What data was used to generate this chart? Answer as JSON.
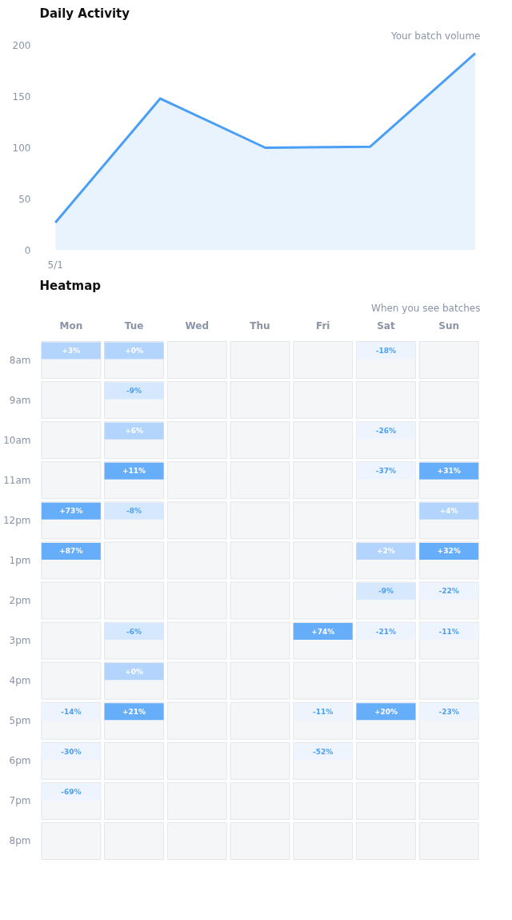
{
  "chart_data": [
    {
      "type": "area",
      "title": "Daily Activity",
      "subtitle": "Your batch volume",
      "categories": [
        "5/1",
        null,
        null,
        null,
        null
      ],
      "values": [
        27,
        148,
        100,
        101,
        192
      ],
      "color": "#4a9ff5",
      "ylim": [
        0,
        200
      ],
      "yticks": [
        0,
        50,
        100,
        150,
        200
      ],
      "grid": false
    },
    {
      "type": "heatmap",
      "title": "Heatmap",
      "subtitle": "When you see batches",
      "categories": [
        "Mon",
        "Tue",
        "Wed",
        "Thu",
        "Fri",
        "Sat",
        "Sun"
      ],
      "y_categories": [
        "8am",
        "9am",
        "10am",
        "11am",
        "12pm",
        "1pm",
        "2pm",
        "3pm",
        "4pm",
        "5pm",
        "6pm",
        "7pm",
        "8pm"
      ],
      "cells": [
        [
          3,
          0,
          null,
          null,
          null,
          -18,
          null
        ],
        [
          null,
          -9,
          null,
          null,
          null,
          null,
          null
        ],
        [
          null,
          6,
          null,
          null,
          null,
          -26,
          null
        ],
        [
          null,
          11,
          null,
          null,
          null,
          -37,
          31
        ],
        [
          73,
          -8,
          null,
          null,
          null,
          null,
          4
        ],
        [
          87,
          null,
          null,
          null,
          null,
          2,
          32
        ],
        [
          null,
          null,
          null,
          null,
          null,
          -9,
          -22
        ],
        [
          null,
          -6,
          null,
          null,
          74,
          -21,
          -11
        ],
        [
          null,
          0,
          null,
          null,
          null,
          null,
          null
        ],
        [
          -14,
          21,
          null,
          null,
          -11,
          20,
          -23
        ],
        [
          -30,
          null,
          null,
          null,
          -52,
          null,
          null
        ],
        [
          -69,
          null,
          null,
          null,
          null,
          null,
          null
        ],
        [
          null,
          null,
          null,
          null,
          null,
          null,
          null
        ]
      ],
      "cell_labels": [
        [
          "+3%",
          "+0%",
          null,
          null,
          null,
          "-18%",
          null
        ],
        [
          null,
          "-9%",
          null,
          null,
          null,
          null,
          null
        ],
        [
          null,
          "+6%",
          null,
          null,
          null,
          "-26%",
          null
        ],
        [
          null,
          "+11%",
          null,
          null,
          null,
          "-37%",
          "+31%"
        ],
        [
          "+73%",
          "-8%",
          null,
          null,
          null,
          null,
          "+4%"
        ],
        [
          "+87%",
          null,
          null,
          null,
          null,
          "+2%",
          "+32%"
        ],
        [
          null,
          null,
          null,
          null,
          null,
          "-9%",
          "-22%"
        ],
        [
          null,
          "-6%",
          null,
          null,
          "+74%",
          "-21%",
          "-11%"
        ],
        [
          null,
          "+0%",
          null,
          null,
          null,
          null,
          null
        ],
        [
          "-14%",
          "+21%",
          null,
          null,
          "-11%",
          "+20%",
          "-23%"
        ],
        [
          "-30%",
          null,
          null,
          null,
          "-52%",
          null,
          null
        ],
        [
          "-69%",
          null,
          null,
          null,
          null,
          null,
          null
        ],
        [
          null,
          null,
          null,
          null,
          null,
          null,
          null
        ]
      ],
      "grid": false
    }
  ]
}
